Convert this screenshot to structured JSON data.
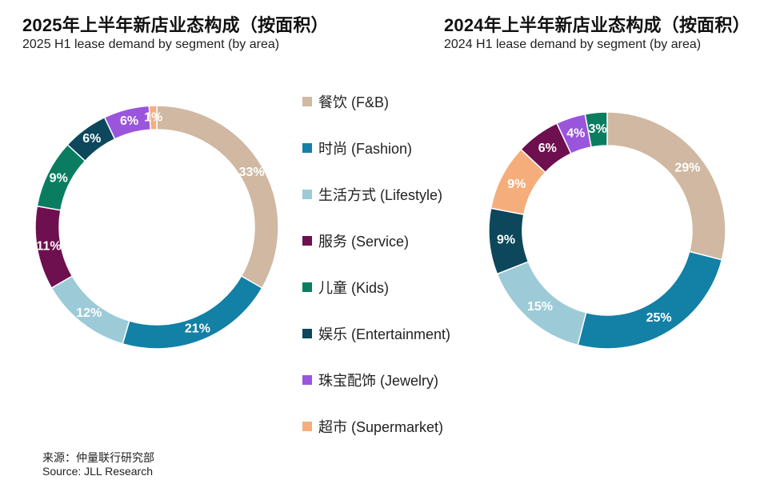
{
  "chart_data": [
    {
      "type": "donut",
      "title": "2025年上半年新店业态构成（按面积）",
      "subtitle": "2025 H1 lease demand by segment (by area)",
      "categories": [
        "餐饮 (F&B)",
        "时尚 (Fashion)",
        "生活方式 (Lifestyle)",
        "服务 (Service)",
        "儿童 (Kids)",
        "娱乐 (Entertainment)",
        "珠宝配饰 (Jewelry)",
        "超市 (Supermarket)"
      ],
      "values": [
        33,
        21,
        12,
        11,
        9,
        6,
        6,
        1
      ],
      "labels": [
        "33%",
        "21%",
        "12%",
        "11%",
        "9%",
        "6%",
        "6%",
        "1%"
      ]
    },
    {
      "type": "donut",
      "title": "2024年上半年新店业态构成（按面积）",
      "subtitle": "2024 H1 lease demand by segment (by area)",
      "categories": [
        "餐饮 (F&B)",
        "时尚 (Fashion)",
        "生活方式 (Lifestyle)",
        "娱乐 (Entertainment)",
        "超市 (Supermarket)",
        "服务 (Service)",
        "珠宝配饰 (Jewelry)",
        "儿童 (Kids)"
      ],
      "values": [
        29,
        25,
        15,
        9,
        9,
        6,
        4,
        3
      ],
      "labels": [
        "29%",
        "25%",
        "15%",
        "9%",
        "9%",
        "6%",
        "4%",
        "3%"
      ]
    }
  ],
  "legend": [
    {
      "label": "餐饮 (F&B)",
      "color": "#d0b8a2"
    },
    {
      "label": "时尚 (Fashion)",
      "color": "#1380a6"
    },
    {
      "label": "生活方式 (Lifestyle)",
      "color": "#9ccbd7"
    },
    {
      "label": "服务 (Service)",
      "color": "#6e0f4f"
    },
    {
      "label": "儿童 (Kids)",
      "color": "#0a7d61"
    },
    {
      "label": "娱乐 (Entertainment)",
      "color": "#0d475b"
    },
    {
      "label": "珠宝配饰 (Jewelry)",
      "color": "#9a55dd"
    },
    {
      "label": "超市 (Supermarket)",
      "color": "#f5ad7c"
    }
  ],
  "source": {
    "zh": "来源：仲量联行研究部",
    "en": "Source: JLL Research"
  }
}
